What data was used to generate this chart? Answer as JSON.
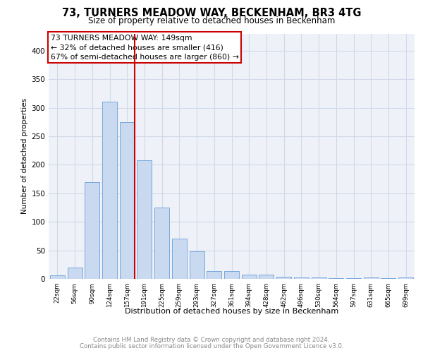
{
  "title": "73, TURNERS MEADOW WAY, BECKENHAM, BR3 4TG",
  "subtitle": "Size of property relative to detached houses in Beckenham",
  "xlabel": "Distribution of detached houses by size in Beckenham",
  "ylabel": "Number of detached properties",
  "bar_labels": [
    "22sqm",
    "56sqm",
    "90sqm",
    "124sqm",
    "157sqm",
    "191sqm",
    "225sqm",
    "259sqm",
    "293sqm",
    "327sqm",
    "361sqm",
    "394sqm",
    "428sqm",
    "462sqm",
    "496sqm",
    "530sqm",
    "564sqm",
    "597sqm",
    "631sqm",
    "665sqm",
    "699sqm"
  ],
  "bar_values": [
    6,
    20,
    170,
    310,
    275,
    208,
    125,
    70,
    48,
    13,
    13,
    8,
    8,
    4,
    2,
    2,
    1,
    1,
    3,
    1,
    3
  ],
  "bar_color": "#c9d9f0",
  "bar_edge_color": "#6a9fd8",
  "vline_bar_index": 4,
  "vline_color": "#cc0000",
  "annotation_title": "73 TURNERS MEADOW WAY: 149sqm",
  "annotation_line1": "← 32% of detached houses are smaller (416)",
  "annotation_line2": "67% of semi-detached houses are larger (860) →",
  "annotation_box_color": "#ffffff",
  "annotation_box_edge_color": "#cc0000",
  "ylim": [
    0,
    430
  ],
  "yticks": [
    0,
    50,
    100,
    150,
    200,
    250,
    300,
    350,
    400
  ],
  "grid_color": "#d0d8e8",
  "bg_color": "#eef2f8",
  "footer1": "Contains HM Land Registry data © Crown copyright and database right 2024.",
  "footer2": "Contains public sector information licensed under the Open Government Licence v3.0."
}
